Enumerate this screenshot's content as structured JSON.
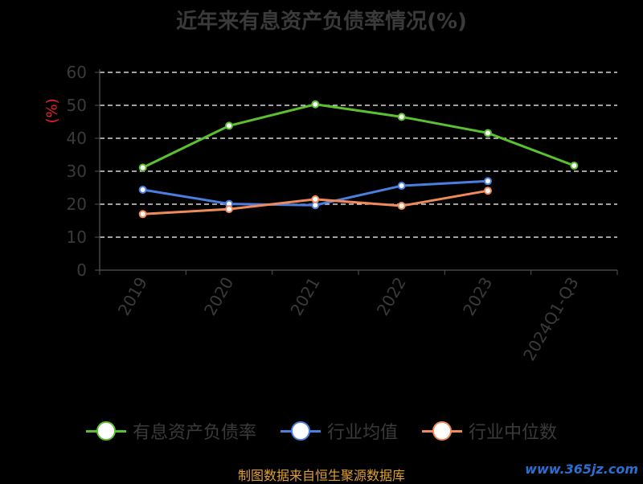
{
  "chart_data": {
    "type": "line",
    "title": "近年来有息资产负债率情况(%)",
    "ylabel": "(%)",
    "categories": [
      "2019",
      "2020",
      "2021",
      "2022",
      "2023",
      "2024Q1-Q3"
    ],
    "ylim": [
      0,
      60
    ],
    "yticks": [
      0,
      10,
      20,
      30,
      40,
      50,
      60
    ],
    "grid": true,
    "legend_position": "bottom",
    "series": [
      {
        "name": "有息资产负债率",
        "color": "#5cc030",
        "values": [
          31.1,
          43.8,
          50.3,
          46.5,
          41.6,
          31.7
        ]
      },
      {
        "name": "行业均值",
        "color": "#4a7fe0",
        "values": [
          24.4,
          20.1,
          19.7,
          25.6,
          27.0,
          null
        ]
      },
      {
        "name": "行业中位数",
        "color": "#f08a5a",
        "values": [
          17.0,
          18.5,
          21.5,
          19.5,
          24.1,
          null
        ]
      }
    ]
  },
  "footer": "制图数据来自恒生聚源数据库",
  "watermark": "www.365jz.com"
}
